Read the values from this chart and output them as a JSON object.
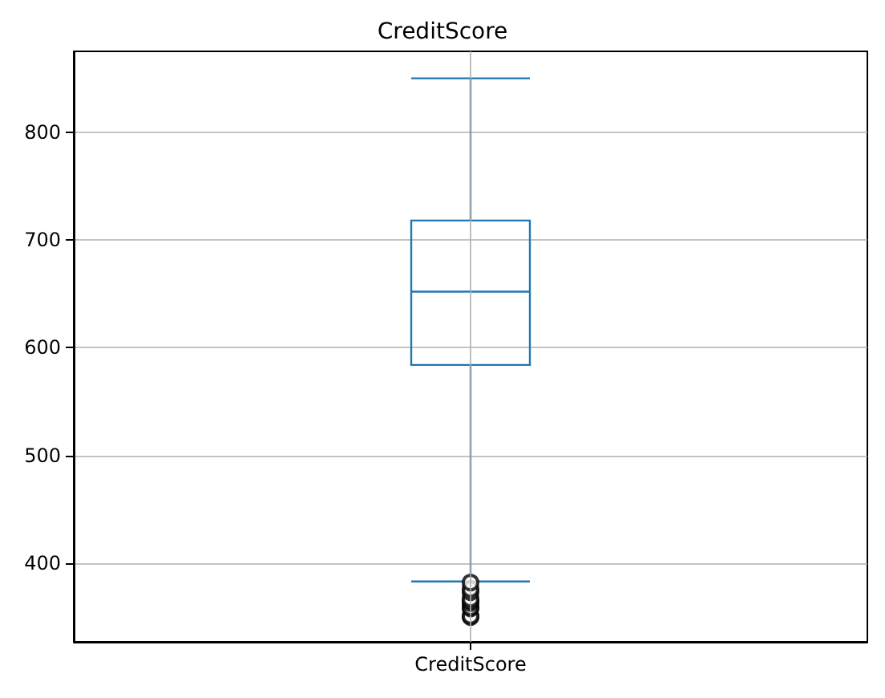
{
  "chart_data": {
    "type": "box",
    "title": "CreditScore",
    "categories": [
      "CreditScore"
    ],
    "boxes": [
      {
        "low": 383,
        "q1": 584,
        "median": 652,
        "q3": 718,
        "high": 850,
        "outliers": [
          350,
          351,
          358,
          359,
          363,
          365,
          367,
          373,
          376,
          382
        ]
      }
    ],
    "color": "#1f77b4",
    "ylim": [
      327,
      875
    ],
    "yticks": [
      400,
      500,
      600,
      700,
      800
    ],
    "grid": true
  }
}
